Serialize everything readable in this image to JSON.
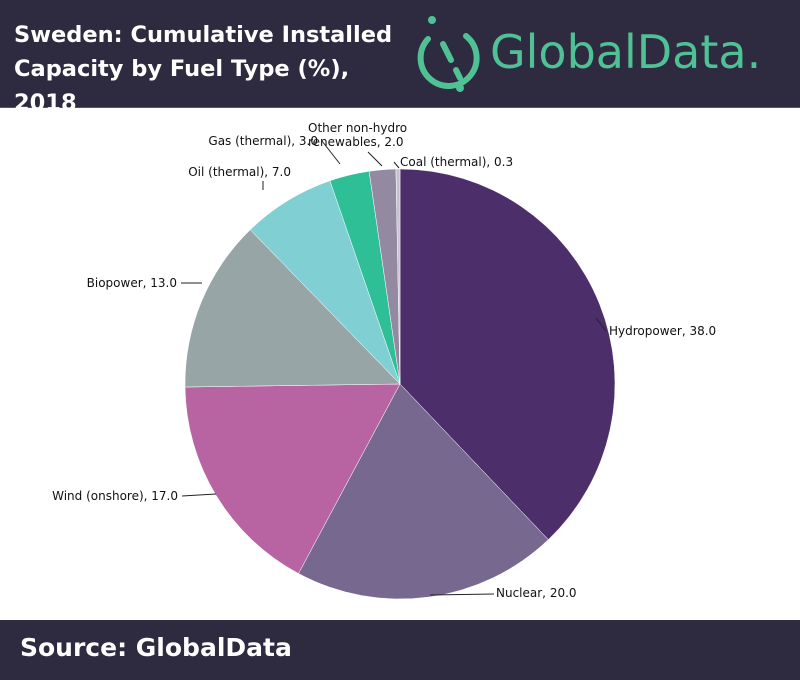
{
  "header": {
    "title": "Sweden: Cumulative Installed Capacity by Fuel Type (%), 2018",
    "logo_text": "GlobalData."
  },
  "footer": {
    "source": "Source: GlobalData"
  },
  "colors": {
    "background_bar": "#2e2a3f",
    "logo": "#4fc195"
  },
  "chart_data": {
    "type": "pie",
    "title": "Sweden: Cumulative Installed Capacity by Fuel Type (%), 2018",
    "start_angle": "12 o'clock",
    "direction": "clockwise",
    "slices": [
      {
        "label": "Hydropower, 38.0",
        "name": "Hydropower",
        "value": 38.0,
        "color": "#4c2f6a"
      },
      {
        "label": "Nuclear, 20.0",
        "name": "Nuclear",
        "value": 20.0,
        "color": "#77688f"
      },
      {
        "label": "Wind (onshore), 17.0",
        "name": "Wind (onshore)",
        "value": 17.0,
        "color": "#b864a3"
      },
      {
        "label": "Biopower, 13.0",
        "name": "Biopower",
        "value": 13.0,
        "color": "#98a5a7"
      },
      {
        "label": "Oil (thermal), 7.0",
        "name": "Oil (thermal)",
        "value": 7.0,
        "color": "#7fcfd3"
      },
      {
        "label": "Gas (thermal), 3.0",
        "name": "Gas (thermal)",
        "value": 3.0,
        "color": "#2fbf97"
      },
      {
        "label": "Other non-hydro renewables, 2.0",
        "label_lines": [
          "Other non-hydro",
          "renewables, 2.0"
        ],
        "name": "Other non-hydro renewables",
        "value": 2.0,
        "color": "#938aa2"
      },
      {
        "label": "Coal (thermal), 0.3",
        "name": "Coal (thermal)",
        "value": 0.3,
        "color": "#c6c0d0"
      }
    ]
  }
}
